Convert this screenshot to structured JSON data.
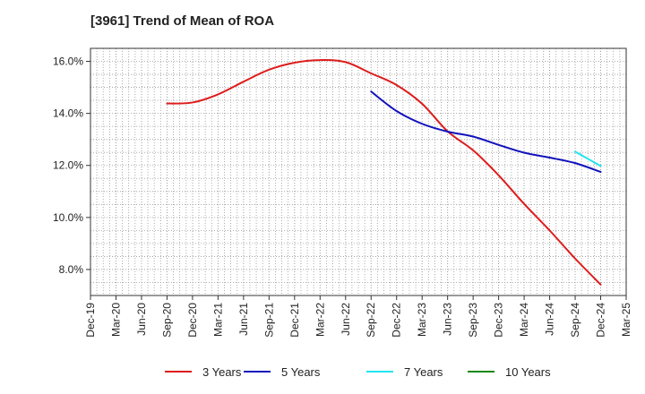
{
  "chart_data": {
    "type": "line",
    "title": "[3961]  Trend of Mean of ROA",
    "xlabel": "",
    "ylabel": "",
    "x_ticks": [
      "Dec-19",
      "Mar-20",
      "Jun-20",
      "Sep-20",
      "Dec-20",
      "Mar-21",
      "Jun-21",
      "Sep-21",
      "Dec-21",
      "Mar-22",
      "Jun-22",
      "Sep-22",
      "Dec-22",
      "Mar-23",
      "Jun-23",
      "Sep-23",
      "Dec-23",
      "Mar-24",
      "Jun-24",
      "Sep-24",
      "Dec-24",
      "Mar-25"
    ],
    "y_ticks": [
      "8.0%",
      "10.0%",
      "12.0%",
      "14.0%",
      "16.0%"
    ],
    "y_tick_values": [
      8,
      10,
      12,
      14,
      16
    ],
    "ylim": [
      7.0,
      16.5
    ],
    "grid": true,
    "legend_position": "bottom",
    "series": [
      {
        "name": "3 Years",
        "color": "#dd1c1c",
        "x": [
          "Sep-20",
          "Dec-20",
          "Mar-21",
          "Jun-21",
          "Sep-21",
          "Dec-21",
          "Mar-22",
          "Jun-22",
          "Sep-22",
          "Dec-22",
          "Mar-23",
          "Jun-23",
          "Sep-23",
          "Dec-23",
          "Mar-24",
          "Jun-24",
          "Sep-24",
          "Dec-24"
        ],
        "values": [
          14.38,
          14.42,
          14.73,
          15.22,
          15.68,
          15.95,
          16.05,
          15.97,
          15.54,
          15.09,
          14.37,
          13.31,
          12.58,
          11.62,
          10.52,
          9.5,
          8.42,
          7.42
        ]
      },
      {
        "name": "5 Years",
        "color": "#1212bb",
        "x": [
          "Sep-22",
          "Dec-22",
          "Mar-23",
          "Jun-23",
          "Sep-23",
          "Dec-23",
          "Mar-24",
          "Jun-24",
          "Sep-24",
          "Dec-24"
        ],
        "values": [
          14.84,
          14.09,
          13.6,
          13.3,
          13.11,
          12.79,
          12.49,
          12.3,
          12.09,
          11.75
        ]
      },
      {
        "name": "7 Years",
        "color": "#22e6ee",
        "x": [
          "Sep-24",
          "Dec-24"
        ],
        "values": [
          12.53,
          11.98
        ]
      },
      {
        "name": "10 Years",
        "color": "#118811",
        "x": [],
        "values": []
      }
    ]
  }
}
